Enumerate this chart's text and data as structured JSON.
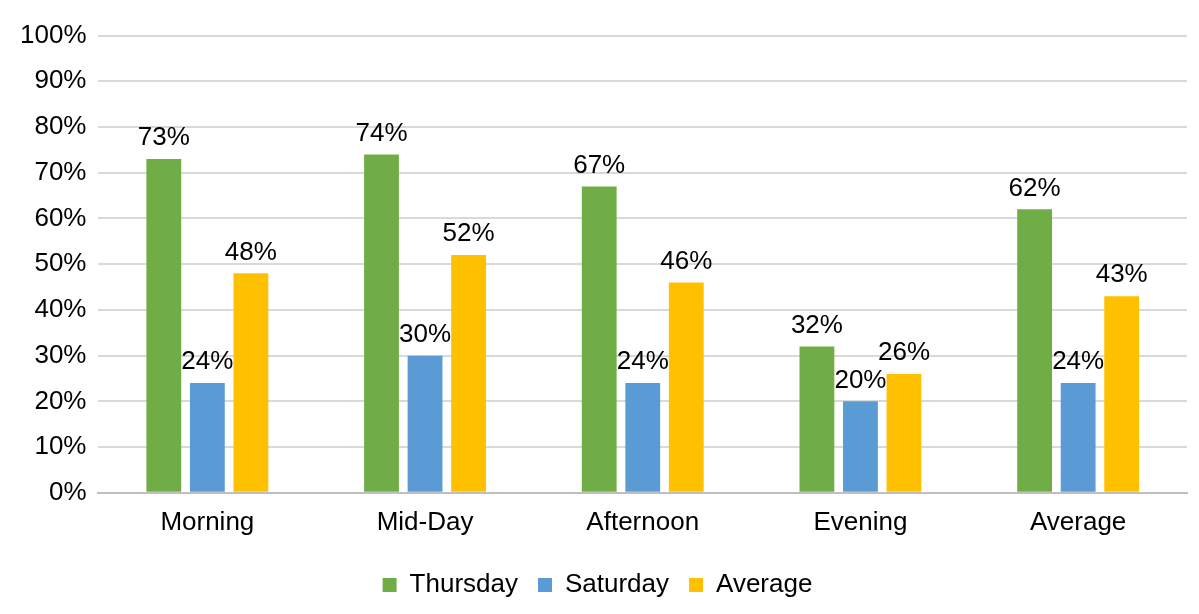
{
  "chart_data": {
    "type": "bar",
    "categories": [
      "Morning",
      "Mid-Day",
      "Afternoon",
      "Evening",
      "Average"
    ],
    "series": [
      {
        "name": "Thursday",
        "color": "#70ad47",
        "values": [
          73,
          74,
          67,
          32,
          62
        ],
        "value_labels": [
          "73%",
          "74%",
          "67%",
          "32%",
          "62%"
        ]
      },
      {
        "name": "Saturday",
        "color": "#5b9bd5",
        "values": [
          24,
          30,
          24,
          20,
          24
        ],
        "value_labels": [
          "24%",
          "30%",
          "24%",
          "20%",
          "24%"
        ]
      },
      {
        "name": "Average",
        "color": "#ffc000",
        "values": [
          48,
          52,
          46,
          26,
          43
        ],
        "value_labels": [
          "48%",
          "52%",
          "46%",
          "26%",
          "43%"
        ]
      }
    ],
    "ylim": [
      0,
      100
    ],
    "yticks": [
      {
        "value": 0,
        "label": "0%"
      },
      {
        "value": 10,
        "label": "10%"
      },
      {
        "value": 20,
        "label": "20%"
      },
      {
        "value": 30,
        "label": "30%"
      },
      {
        "value": 40,
        "label": "40%"
      },
      {
        "value": 50,
        "label": "50%"
      },
      {
        "value": 60,
        "label": "60%"
      },
      {
        "value": 70,
        "label": "70%"
      },
      {
        "value": 80,
        "label": "80%"
      },
      {
        "value": 90,
        "label": "90%"
      },
      {
        "value": 100,
        "label": "100%"
      }
    ],
    "grid": "y",
    "legend": "bottom"
  }
}
